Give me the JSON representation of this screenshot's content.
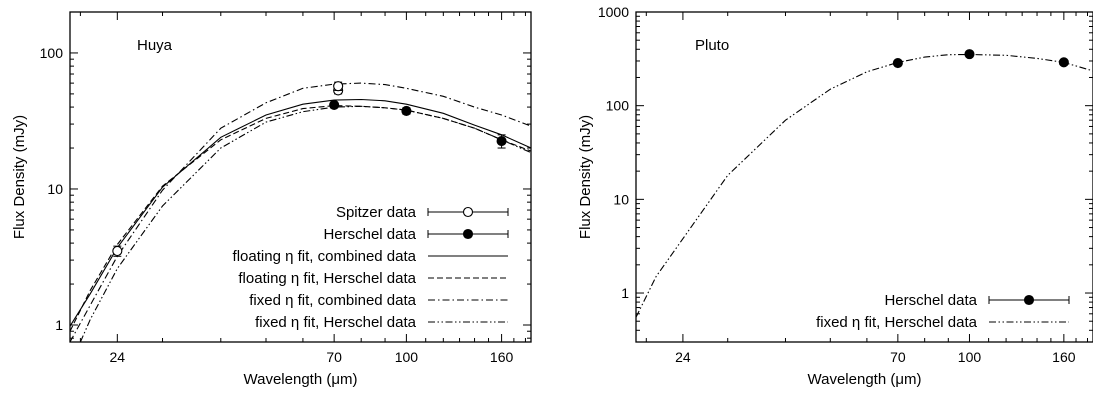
{
  "chart_data": [
    {
      "type": "scatter",
      "annotation": "Huya",
      "xlabel": "Wavelength (μm)",
      "ylabel": "Flux Density (mJy)",
      "x_scale": "log",
      "y_scale": "log",
      "xlim": [
        19,
        185
      ],
      "ylim": [
        0.75,
        200
      ],
      "x_ticks": [
        24,
        70,
        100,
        160
      ],
      "x_tick_labels": [
        "24",
        "70",
        "100",
        "160"
      ],
      "y_ticks": [
        1,
        10,
        100
      ],
      "y_tick_labels": [
        "1",
        "10",
        "100"
      ],
      "legend_position": "bottom-right",
      "series": [
        {
          "name": "Spitzer data",
          "kind": "points",
          "marker": "open-circle",
          "x": [
            24,
            71.4,
            71.4
          ],
          "y": [
            3.5,
            53,
            57
          ],
          "yerr": [
            0.3,
            3,
            4
          ]
        },
        {
          "name": "Herschel data",
          "kind": "points",
          "marker": "filled-circle",
          "x": [
            70,
            100,
            160
          ],
          "y": [
            41.5,
            37.5,
            22.5
          ],
          "yerr": [
            2,
            2,
            2.5
          ]
        },
        {
          "name": "floating η fit, combined data",
          "kind": "line",
          "dash": "solid",
          "x": [
            19,
            21,
            24,
            30,
            40,
            50,
            60,
            70,
            80,
            90,
            100,
            120,
            140,
            160,
            185
          ],
          "y": [
            0.98,
            1.7,
            3.7,
            10.3,
            24,
            35,
            42,
            45,
            45.5,
            44.5,
            42,
            36,
            29.5,
            25,
            20
          ]
        },
        {
          "name": "floating η fit, Herschel data",
          "kind": "line",
          "dash": "dashed",
          "x": [
            19,
            21,
            24,
            30,
            40,
            50,
            60,
            70,
            80,
            90,
            100,
            120,
            140,
            160,
            185
          ],
          "y": [
            0.9,
            1.8,
            3.9,
            10.5,
            23,
            33,
            39,
            41,
            40.5,
            39.5,
            38,
            33,
            28,
            23,
            19
          ]
        },
        {
          "name": "fixed η fit, combined data",
          "kind": "line",
          "dash": "dashdot",
          "x": [
            19,
            21,
            24,
            30,
            40,
            50,
            60,
            70,
            80,
            90,
            100,
            120,
            140,
            160,
            185
          ],
          "y": [
            0.75,
            1.4,
            3.2,
            9.8,
            28,
            43,
            55,
            59,
            60,
            58.5,
            55,
            48,
            40,
            35,
            29
          ]
        },
        {
          "name": "fixed η fit, Herschel data",
          "kind": "line",
          "dash": "dashdotdot",
          "x": [
            20,
            21,
            24,
            30,
            40,
            50,
            60,
            70,
            80,
            90,
            100,
            120,
            140,
            160,
            185
          ],
          "y": [
            0.75,
            1.1,
            2.6,
            7.5,
            20,
            31,
            37,
            40,
            40.5,
            39.5,
            38,
            33,
            28,
            23,
            18.5
          ]
        }
      ]
    },
    {
      "type": "scatter",
      "annotation": "Pluto",
      "xlabel": "Wavelength (μm)",
      "ylabel": "Flux Density (mJy)",
      "x_scale": "log",
      "y_scale": "log",
      "xlim": [
        19,
        185
      ],
      "ylim": [
        0.3,
        1000
      ],
      "x_ticks": [
        24,
        70,
        100,
        160
      ],
      "x_tick_labels": [
        "24",
        "70",
        "100",
        "160"
      ],
      "y_ticks": [
        1,
        10,
        100,
        1000
      ],
      "y_tick_labels": [
        "1",
        "10",
        "100",
        "1000"
      ],
      "legend_position": "bottom-right",
      "series": [
        {
          "name": "Herschel data",
          "kind": "points",
          "marker": "filled-circle",
          "x": [
            70,
            100,
            160
          ],
          "y": [
            285,
            355,
            290
          ],
          "yerr": [
            10,
            12,
            10
          ]
        },
        {
          "name": "fixed η fit, Herschel data",
          "kind": "line",
          "dash": "dashdotdot",
          "x": [
            19,
            21,
            24,
            30,
            40,
            50,
            60,
            70,
            80,
            90,
            100,
            120,
            140,
            160,
            185
          ],
          "y": [
            0.55,
            1.5,
            3.8,
            18,
            70,
            150,
            230,
            290,
            330,
            350,
            352,
            345,
            320,
            290,
            235
          ]
        }
      ]
    }
  ]
}
